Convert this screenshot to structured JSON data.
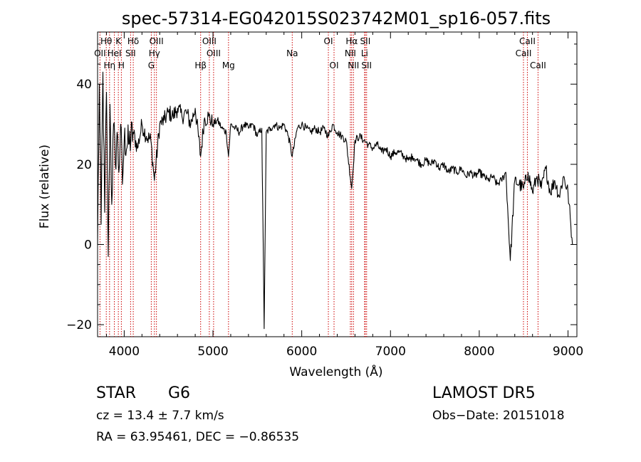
{
  "chart_data": {
    "type": "line",
    "title": "spec-57314-EG042015S023742M01_sp16-057.fits",
    "xlabel": "Wavelength (Å)",
    "ylabel": "Flux (relative)",
    "xlim": [
      3700,
      9100
    ],
    "ylim": [
      -23,
      53
    ],
    "x_ticks": [
      4000,
      5000,
      6000,
      7000,
      8000,
      9000
    ],
    "x_tick_labels": [
      "4000",
      "5000",
      "6000",
      "7000",
      "8000",
      "9000"
    ],
    "y_ticks": [
      -20,
      0,
      20,
      40
    ],
    "y_tick_labels": [
      "−20",
      "0",
      "20",
      "40"
    ],
    "grid": false,
    "line_color": "#000000",
    "marker_color": "#cc0000",
    "series": [
      {
        "x": [
          3700,
          3720,
          3740,
          3760,
          3780,
          3800,
          3820,
          3840,
          3860,
          3880,
          3900,
          3920,
          3940,
          3960,
          3980,
          4000,
          4050,
          4100,
          4150,
          4200,
          4250,
          4300,
          4340,
          4400,
          4450,
          4500,
          4550,
          4600,
          4650,
          4700,
          4750,
          4800,
          4861,
          4900,
          4950,
          5000,
          5050,
          5100,
          5150,
          5175,
          5200,
          5250,
          5300,
          5350,
          5400,
          5450,
          5500,
          5550,
          5577,
          5600,
          5650,
          5700,
          5750,
          5800,
          5850,
          5893,
          5950,
          6000,
          6050,
          6100,
          6150,
          6200,
          6250,
          6300,
          6350,
          6400,
          6450,
          6500,
          6563,
          6600,
          6650,
          6700,
          6750,
          6800,
          6850,
          6900,
          6950,
          7000,
          7050,
          7100,
          7150,
          7200,
          7250,
          7300,
          7350,
          7400,
          7450,
          7500,
          7550,
          7600,
          7650,
          7700,
          7750,
          7800,
          7850,
          7900,
          7950,
          8000,
          8050,
          8100,
          8150,
          8200,
          8250,
          8300,
          8350,
          8400,
          8450,
          8500,
          8550,
          8600,
          8650,
          8700,
          8750,
          8800,
          8850,
          8900,
          8950,
          9000,
          9050
        ],
        "values": [
          0,
          40,
          5,
          43,
          8,
          38,
          -3,
          35,
          10,
          30,
          20,
          28,
          18,
          30,
          15,
          26,
          25,
          28,
          24,
          30,
          27,
          26,
          16,
          30,
          31,
          33,
          32,
          34,
          32,
          33,
          30,
          34,
          22,
          31,
          32,
          30,
          31,
          29,
          28,
          22,
          30,
          29,
          28,
          30,
          29,
          30,
          27,
          29,
          -21,
          28,
          29,
          30,
          29,
          30,
          27,
          22,
          29,
          30,
          29,
          28,
          29,
          28,
          29,
          27,
          30,
          28,
          27,
          26,
          14,
          26,
          27,
          26,
          25,
          24,
          25,
          23,
          24,
          22,
          23,
          23,
          22,
          21,
          22,
          21,
          20,
          21,
          20,
          21,
          19,
          20,
          18,
          19,
          18,
          19,
          17,
          18,
          17,
          18,
          17,
          16,
          17,
          15,
          16,
          18,
          -4,
          16,
          15,
          14,
          18,
          13,
          17,
          14,
          19,
          13,
          16,
          12,
          17,
          13,
          0
        ]
      }
    ],
    "line_markers": [
      {
        "label": "Hθ",
        "wavelength": 3798,
        "row": 1
      },
      {
        "label": "K",
        "wavelength": 3934,
        "row": 1
      },
      {
        "label": "Hδ",
        "wavelength": 4102,
        "row": 1
      },
      {
        "label": "OIII",
        "wavelength": 4363,
        "row": 1
      },
      {
        "label": "OIII",
        "wavelength": 4959,
        "row": 1
      },
      {
        "label": "OI",
        "wavelength": 6300,
        "row": 1
      },
      {
        "label": "Hα",
        "wavelength": 6563,
        "row": 1
      },
      {
        "label": "SII",
        "wavelength": 6716,
        "row": 1
      },
      {
        "label": "CaII",
        "wavelength": 8542,
        "row": 1
      },
      {
        "label": "OII",
        "wavelength": 3727,
        "row": 2
      },
      {
        "label": "HeI",
        "wavelength": 3889,
        "row": 2
      },
      {
        "label": "SII",
        "wavelength": 4072,
        "row": 2
      },
      {
        "label": "Hγ",
        "wavelength": 4340,
        "row": 2
      },
      {
        "label": "OIII",
        "wavelength": 5007,
        "row": 2
      },
      {
        "label": "Na",
        "wavelength": 5893,
        "row": 2
      },
      {
        "label": "NII",
        "wavelength": 6548,
        "row": 2
      },
      {
        "label": "Li",
        "wavelength": 6708,
        "row": 2
      },
      {
        "label": "CaII",
        "wavelength": 8498,
        "row": 2
      },
      {
        "label": "Hη",
        "wavelength": 3835,
        "row": 3
      },
      {
        "label": "H",
        "wavelength": 3968,
        "row": 3
      },
      {
        "label": "G",
        "wavelength": 4305,
        "row": 3
      },
      {
        "label": "Hβ",
        "wavelength": 4861,
        "row": 3
      },
      {
        "label": "Mg",
        "wavelength": 5175,
        "row": 3
      },
      {
        "label": "OI",
        "wavelength": 6364,
        "row": 3
      },
      {
        "label": "NII",
        "wavelength": 6583,
        "row": 3
      },
      {
        "label": "SII",
        "wavelength": 6731,
        "row": 3
      },
      {
        "label": "CaII",
        "wavelength": 8662,
        "row": 3
      }
    ]
  },
  "info": {
    "object_class": "STAR",
    "subclass": "G6",
    "cz": "cz = 13.4 ± 7.7 km/s",
    "coords": "RA =  63.95461, DEC =  −0.86535",
    "survey": "LAMOST DR5",
    "obs_date": "Obs−Date: 20151018"
  }
}
